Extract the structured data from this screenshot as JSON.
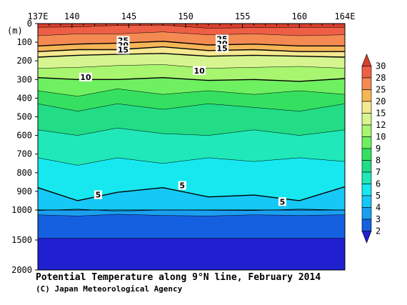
{
  "chart_data": {
    "type": "heatmap",
    "title": "Potential Temperature along 9°N line, February 2014",
    "credit": "(C) Japan Meteorological Agency",
    "xlabel": "",
    "ylabel": "(m)",
    "x_ticks": [
      {
        "value": 137,
        "label": "137E"
      },
      {
        "value": 140,
        "label": "140"
      },
      {
        "value": 145,
        "label": "145"
      },
      {
        "value": 150,
        "label": "150"
      },
      {
        "value": 155,
        "label": "155"
      },
      {
        "value": 160,
        "label": "160"
      },
      {
        "value": 164,
        "label": "164E"
      }
    ],
    "xlim": [
      137,
      164
    ],
    "y_ticks": [
      {
        "value": 0,
        "label": "0"
      },
      {
        "value": 100,
        "label": "100"
      },
      {
        "value": 200,
        "label": "200"
      },
      {
        "value": 300,
        "label": "300"
      },
      {
        "value": 400,
        "label": "400"
      },
      {
        "value": 500,
        "label": "500"
      },
      {
        "value": 600,
        "label": "600"
      },
      {
        "value": 700,
        "label": "700"
      },
      {
        "value": 800,
        "label": "800"
      },
      {
        "value": 900,
        "label": "900"
      },
      {
        "value": 1000,
        "label": "1000"
      },
      {
        "value": 1500,
        "label": "1500"
      },
      {
        "value": 2000,
        "label": "2000"
      }
    ],
    "ylim": [
      0,
      2000
    ],
    "y_axis_break_at": 1000,
    "colorbar": {
      "levels": [
        2,
        3,
        4,
        5,
        6,
        7,
        8,
        9,
        10,
        12,
        15,
        20,
        25,
        28,
        30
      ],
      "colors": [
        "#2020d0",
        "#1560e0",
        "#1a9ff0",
        "#16c8f5",
        "#17e8f0",
        "#20e8b8",
        "#22dc86",
        "#35e060",
        "#6ff060",
        "#a8f570",
        "#d6f590",
        "#f5e890",
        "#f6b658",
        "#f48a52",
        "#ee5f46",
        "#d8402c"
      ]
    },
    "bands": [
      {
        "level": 2,
        "depths": [
          1470,
          1470,
          1470,
          1470,
          1470,
          1470,
          1470,
          1470
        ]
      },
      {
        "level": 3,
        "depths": [
          1080,
          1100,
          1070,
          1090,
          1100,
          1080,
          1090,
          1080
        ]
      },
      {
        "level": 4,
        "depths": [
          1010,
          995,
          1020,
          1000,
          1005,
          1010,
          995,
          1000
        ]
      },
      {
        "level": 5,
        "depths": [
          880,
          950,
          905,
          880,
          930,
          920,
          950,
          875
        ]
      },
      {
        "level": 6,
        "depths": [
          720,
          760,
          720,
          750,
          720,
          740,
          720,
          740
        ]
      },
      {
        "level": 7,
        "depths": [
          570,
          600,
          560,
          590,
          600,
          570,
          600,
          570
        ]
      },
      {
        "level": 8,
        "depths": [
          430,
          470,
          430,
          460,
          430,
          450,
          470,
          430
        ]
      },
      {
        "level": 9,
        "depths": [
          360,
          390,
          350,
          380,
          360,
          380,
          360,
          380
        ]
      },
      {
        "level": 10,
        "depths": [
          290,
          300,
          300,
          290,
          305,
          300,
          310,
          295
        ]
      },
      {
        "level": 12,
        "depths": [
          240,
          235,
          225,
          220,
          240,
          235,
          230,
          240
        ]
      },
      {
        "level": 15,
        "depths": [
          180,
          170,
          165,
          160,
          175,
          170,
          175,
          180
        ]
      },
      {
        "level": 20,
        "depths": [
          150,
          140,
          140,
          125,
          145,
          140,
          150,
          150
        ]
      },
      {
        "level": 25,
        "depths": [
          120,
          110,
          105,
          95,
          115,
          110,
          120,
          120
        ]
      },
      {
        "level": 28,
        "depths": [
          65,
          55,
          55,
          45,
          60,
          55,
          65,
          60
        ]
      },
      {
        "level": 30,
        "depths": [
          20,
          18,
          10,
          8,
          25,
          22,
          20,
          20
        ]
      }
    ],
    "band_x": [
      137,
      140.5,
      144,
      148,
      152,
      156,
      160,
      164
    ],
    "contour_labels": [
      {
        "value": "25",
        "lon": 144.5,
        "depth": 90
      },
      {
        "value": "20",
        "lon": 144.5,
        "depth": 115
      },
      {
        "value": "15",
        "lon": 144.5,
        "depth": 140
      },
      {
        "value": "25",
        "lon": 153.2,
        "depth": 82
      },
      {
        "value": "20",
        "lon": 153.2,
        "depth": 107
      },
      {
        "value": "15",
        "lon": 153.2,
        "depth": 132
      },
      {
        "value": "10",
        "lon": 141.2,
        "depth": 287
      },
      {
        "value": "10",
        "lon": 151.2,
        "depth": 252
      },
      {
        "value": "5",
        "lon": 142.3,
        "depth": 918
      },
      {
        "value": "5",
        "lon": 149.7,
        "depth": 868
      },
      {
        "value": "5",
        "lon": 158.5,
        "depth": 955
      }
    ],
    "grid": false
  }
}
